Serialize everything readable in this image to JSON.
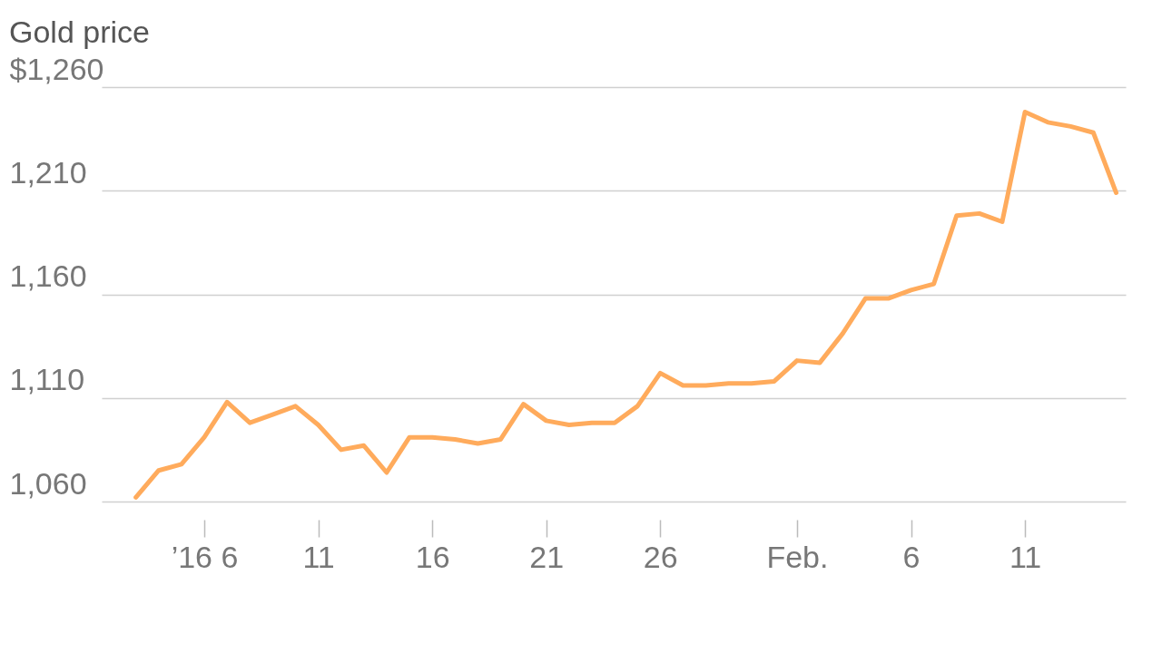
{
  "chart_data": {
    "type": "line",
    "title": "Gold price",
    "x": [
      "2016-01-03",
      "2016-01-04",
      "2016-01-05",
      "2016-01-06",
      "2016-01-07",
      "2016-01-08",
      "2016-01-09",
      "2016-01-10",
      "2016-01-11",
      "2016-01-12",
      "2016-01-13",
      "2016-01-14",
      "2016-01-15",
      "2016-01-16",
      "2016-01-17",
      "2016-01-18",
      "2016-01-19",
      "2016-01-20",
      "2016-01-21",
      "2016-01-22",
      "2016-01-23",
      "2016-01-24",
      "2016-01-25",
      "2016-01-26",
      "2016-01-27",
      "2016-01-28",
      "2016-01-29",
      "2016-01-30",
      "2016-01-31",
      "2016-02-01",
      "2016-02-02",
      "2016-02-03",
      "2016-02-04",
      "2016-02-05",
      "2016-02-06",
      "2016-02-07",
      "2016-02-08",
      "2016-02-09",
      "2016-02-10",
      "2016-02-11",
      "2016-02-12",
      "2016-02-13",
      "2016-02-14",
      "2016-02-15"
    ],
    "values": [
      1062,
      1075,
      1078,
      1091,
      1108,
      1098,
      1102,
      1106,
      1097,
      1085,
      1087,
      1074,
      1091,
      1091,
      1090,
      1088,
      1090,
      1107,
      1099,
      1097,
      1098,
      1098,
      1106,
      1122,
      1116,
      1116,
      1117,
      1117,
      1118,
      1128,
      1127,
      1141,
      1158,
      1158,
      1162,
      1165,
      1198,
      1199,
      1195,
      1248,
      1243,
      1241,
      1238,
      1209
    ],
    "color": "#ffab5c",
    "xlim": [
      "2016-01-01T12:00",
      "2016-02-15T10:00"
    ],
    "xticks": [
      {
        "value": "2016-01-06",
        "label": "’16 6"
      },
      {
        "value": "2016-01-11",
        "label": "11"
      },
      {
        "value": "2016-01-16",
        "label": "16"
      },
      {
        "value": "2016-01-21",
        "label": "21"
      },
      {
        "value": "2016-01-26",
        "label": "26"
      },
      {
        "value": "2016-02-01",
        "label": "Feb."
      },
      {
        "value": "2016-02-06",
        "label": "6"
      },
      {
        "value": "2016-02-11",
        "label": "11"
      }
    ],
    "ylim": [
      1060,
      1260
    ],
    "yticks": [
      {
        "value": 1060,
        "label": "1,060"
      },
      {
        "value": 1110,
        "label": "1,110"
      },
      {
        "value": 1160,
        "label": "1,160"
      },
      {
        "value": 1210,
        "label": "1,210"
      },
      {
        "value": 1260,
        "label": "$1,260"
      }
    ],
    "grid": "y"
  }
}
